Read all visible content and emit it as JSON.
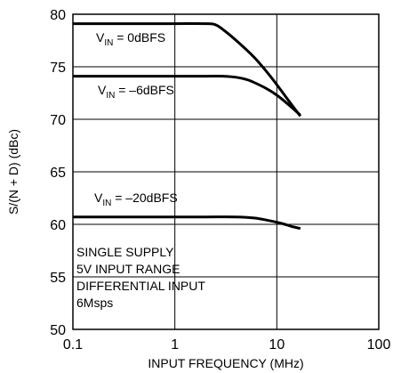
{
  "chart_data": {
    "type": "line",
    "xscale": "log",
    "xlim": [
      0.1,
      100
    ],
    "ylim": [
      50,
      80
    ],
    "xlabel": "INPUT FREQUENCY (MHz)",
    "ylabel": "S/(N + D) (dBc)",
    "xticks": [
      "0.1",
      "1",
      "10",
      "100"
    ],
    "yticks": [
      "50",
      "55",
      "60",
      "65",
      "70",
      "75",
      "80"
    ],
    "grid": true,
    "series": [
      {
        "label_main": "V",
        "label_sub": "IN",
        "label_rest": " = 0dBFS",
        "x": [
          0.1,
          0.5,
          1,
          2,
          2.5,
          3,
          4,
          6,
          8,
          10,
          13,
          17
        ],
        "y": [
          79.1,
          79.1,
          79.1,
          79.1,
          79.0,
          78.5,
          77.5,
          75.9,
          74.5,
          73.3,
          71.8,
          70.3
        ]
      },
      {
        "label_main": "V",
        "label_sub": "IN",
        "label_rest": " = –6dBFS",
        "x": [
          0.1,
          0.5,
          1,
          2,
          3,
          4,
          5,
          6,
          8,
          10,
          13,
          17
        ],
        "y": [
          74.1,
          74.1,
          74.1,
          74.1,
          74.1,
          74.0,
          73.8,
          73.5,
          72.9,
          72.3,
          71.4,
          70.4
        ]
      },
      {
        "label_main": "V",
        "label_sub": "IN",
        "label_rest": " = –20dBFS",
        "x": [
          0.1,
          0.5,
          1,
          2,
          4,
          6,
          8,
          10,
          12,
          14,
          17
        ],
        "y": [
          60.7,
          60.7,
          60.7,
          60.7,
          60.7,
          60.6,
          60.4,
          60.2,
          60.0,
          59.8,
          59.6
        ]
      }
    ],
    "annotations": [
      "SINGLE SUPPLY",
      "5V INPUT RANGE",
      "DIFFERENTIAL INPUT",
      "6Msps"
    ]
  }
}
